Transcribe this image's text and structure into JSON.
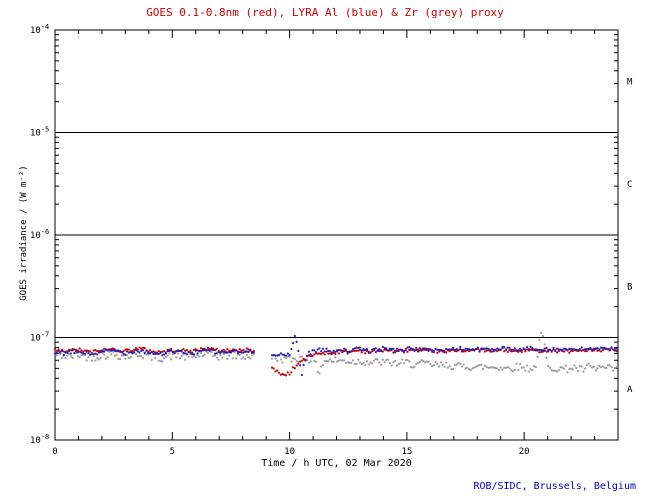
{
  "chart_data": {
    "type": "scatter",
    "title": "GOES 0.1-0.8nm (red), LYRA Al (blue) & Zr (grey) proxy",
    "xlabel": "Time / h UTC, 02 Mar 2020",
    "ylabel": "GOES irradiance / (W m⁻²)",
    "footer": "ROB/SIDC, Brussels, Belgium",
    "xlim": [
      0,
      24
    ],
    "ylim_exp": [
      -8,
      -4
    ],
    "xticks_major": [
      0,
      5,
      10,
      15,
      20
    ],
    "xtick_minor_step": 1,
    "ytick_exponents": [
      -8,
      -7,
      -6,
      -5,
      -4
    ],
    "hline_exponents": [
      -7,
      -6,
      -5
    ],
    "flare_classes": [
      {
        "label": "M",
        "exp_center": -4.5
      },
      {
        "label": "C",
        "exp_center": -5.5
      },
      {
        "label": "B",
        "exp_center": -6.5
      },
      {
        "label": "A",
        "exp_center": -7.5
      }
    ],
    "colors": {
      "red": "#cc0000",
      "blue": "#2222bb",
      "grey": "#9b9b9b",
      "axis": "#000000",
      "title": "#cc0000",
      "footer": "#0000bb"
    },
    "x_start": 0,
    "x_step": 0.25,
    "gap_hours": [
      8.5,
      9.25
    ],
    "units_note": "values_e8 are irradiance in units of 1e-8 W m-2 sampled every 0.25 h; null = data gap",
    "series": [
      {
        "name": "Zr proxy",
        "color_key": "grey",
        "jitter": 0.17,
        "values_e8": [
          6.8,
          6.7,
          6.5,
          6.6,
          6.8,
          6.6,
          6.4,
          6.5,
          6.7,
          6.8,
          6.9,
          6.7,
          6.5,
          6.7,
          6.9,
          6.8,
          6.6,
          6.4,
          6.3,
          6.5,
          6.6,
          6.7,
          6.5,
          6.4,
          6.6,
          6.8,
          6.9,
          6.7,
          6.5,
          6.6,
          6.7,
          6.6,
          6.5,
          6.6,
          6.5,
          null,
          null,
          6.4,
          6.3,
          6.2,
          6.1,
          6.2,
          6.3,
          6.2,
          6.1,
          4.6,
          6.0,
          5.9,
          6.0,
          5.9,
          5.9,
          5.8,
          5.9,
          5.8,
          5.7,
          5.8,
          5.7,
          5.7,
          5.6,
          5.6,
          5.7,
          5.5,
          5.5,
          5.6,
          5.4,
          5.4,
          5.3,
          5.4,
          5.3,
          5.2,
          5.3,
          5.2,
          5.1,
          5.2,
          5.1,
          5.2,
          5.1,
          5.0,
          5.1,
          5.2,
          5.1,
          5.0,
          5.1,
          11.3,
          5.0,
          5.1,
          5.0,
          4.9,
          5.1,
          5.0,
          4.8,
          5.2,
          4.9,
          5.1,
          5.0,
          4.9,
          5.0
        ]
      },
      {
        "name": "GOES 0.1-0.8nm",
        "color_key": "red",
        "jitter": 0.08,
        "values_e8": [
          7.5,
          7.4,
          7.3,
          7.5,
          7.6,
          7.4,
          7.2,
          7.3,
          7.5,
          7.6,
          7.7,
          7.5,
          7.4,
          7.6,
          7.8,
          7.7,
          7.5,
          7.3,
          7.2,
          7.4,
          7.5,
          7.6,
          7.4,
          7.3,
          7.5,
          7.7,
          7.8,
          7.6,
          7.4,
          7.5,
          7.6,
          7.5,
          7.4,
          7.6,
          7.5,
          null,
          null,
          5.0,
          4.6,
          4.3,
          4.5,
          5.2,
          5.9,
          6.4,
          6.8,
          7.0,
          7.1,
          7.0,
          7.2,
          7.3,
          7.2,
          7.4,
          7.5,
          7.3,
          7.2,
          7.4,
          7.6,
          7.5,
          7.3,
          7.4,
          7.5,
          7.6,
          7.4,
          7.3,
          7.5,
          7.4,
          7.2,
          7.3,
          7.5,
          7.6,
          7.5,
          7.4,
          7.6,
          7.5,
          7.3,
          7.4,
          7.6,
          7.5,
          7.4,
          7.3,
          7.5,
          7.6,
          7.4,
          7.5,
          7.6,
          7.5,
          7.4,
          7.5,
          7.3,
          7.4,
          7.5,
          7.6,
          7.5,
          7.4,
          7.5,
          7.6,
          7.5
        ]
      },
      {
        "name": "LYRA Al",
        "color_key": "blue",
        "jitter": 0.09,
        "values_e8": [
          7.2,
          7.1,
          7.0,
          7.2,
          7.3,
          7.1,
          6.9,
          7.0,
          7.2,
          7.4,
          7.5,
          7.3,
          7.1,
          7.3,
          7.5,
          7.4,
          7.2,
          7.0,
          6.9,
          7.1,
          7.2,
          7.3,
          7.1,
          7.0,
          7.2,
          7.4,
          7.5,
          7.3,
          7.1,
          7.2,
          7.3,
          7.2,
          7.1,
          7.3,
          7.2,
          null,
          null,
          7.0,
          6.9,
          6.8,
          6.6,
          10.5,
          4.2,
          6.8,
          7.4,
          7.6,
          7.5,
          7.4,
          7.6,
          7.5,
          7.4,
          7.6,
          7.7,
          7.5,
          7.4,
          7.6,
          7.8,
          7.7,
          7.5,
          7.6,
          7.7,
          7.8,
          7.6,
          7.5,
          7.7,
          7.6,
          7.4,
          7.5,
          7.7,
          7.8,
          7.7,
          7.6,
          7.8,
          7.7,
          7.5,
          7.6,
          7.8,
          7.7,
          7.6,
          7.5,
          7.7,
          7.8,
          7.6,
          7.7,
          7.8,
          7.7,
          7.6,
          7.7,
          7.5,
          7.6,
          7.7,
          7.8,
          7.7,
          7.6,
          7.7,
          7.8,
          7.7
        ]
      }
    ]
  }
}
